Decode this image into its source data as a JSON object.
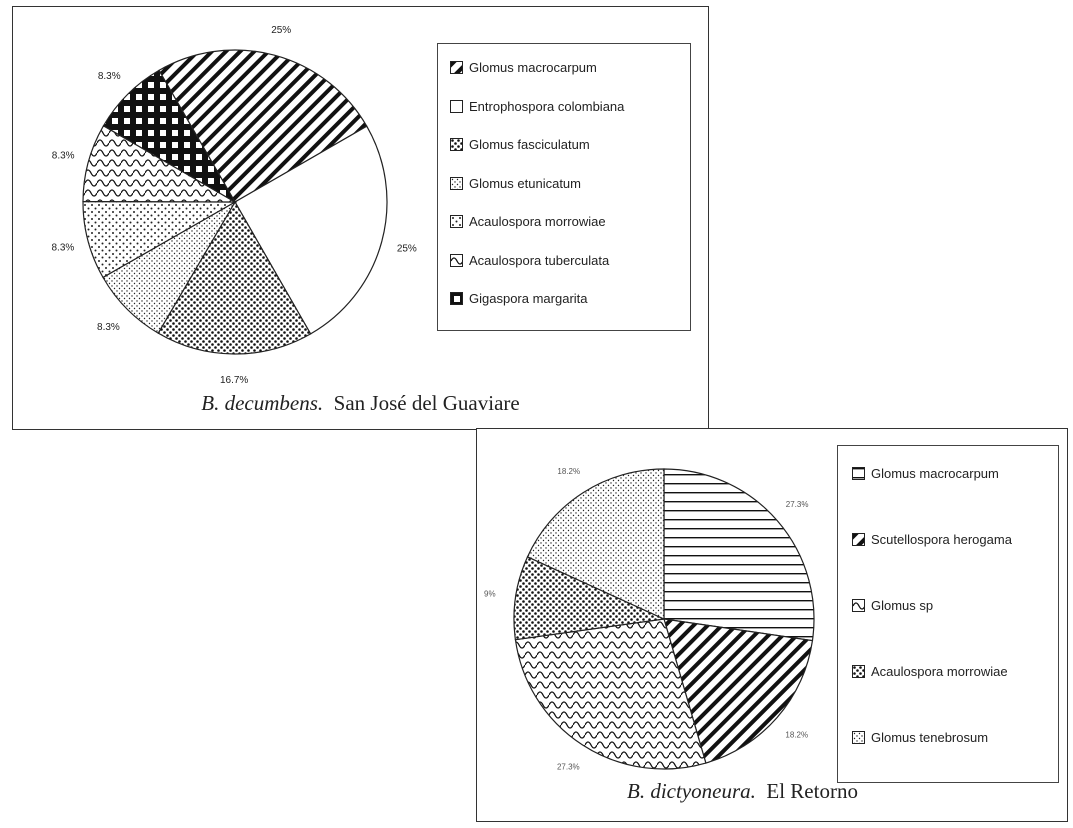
{
  "chart_data": [
    {
      "type": "pie",
      "caption_species": "B. decumbens.",
      "caption_place": "San José del Guaviare",
      "slices": [
        {
          "label": "Glomus macrocarpum",
          "value": 25,
          "pct_label": "25%",
          "pattern": "diag-stripe"
        },
        {
          "label": "Entrophospora colombiana",
          "value": 25,
          "pct_label": "25%",
          "pattern": "blank"
        },
        {
          "label": "Glomus fasciculatum",
          "value": 16.7,
          "pct_label": "16.7%",
          "pattern": "dense-dots"
        },
        {
          "label": "Glomus etunicatum",
          "value": 8.3,
          "pct_label": "8.3%",
          "pattern": "fine-dots"
        },
        {
          "label": "Acaulospora morrowiae",
          "value": 8.3,
          "pct_label": "8.3%",
          "pattern": "sparse-dots"
        },
        {
          "label": "Acaulospora tuberculata",
          "value": 8.3,
          "pct_label": "8.3%",
          "pattern": "wave"
        },
        {
          "label": "Gigaspora margarita",
          "value": 8.3,
          "pct_label": "8.3%",
          "pattern": "grid"
        }
      ]
    },
    {
      "type": "pie",
      "caption_species": "B. dictyoneura.",
      "caption_place": "El Retorno",
      "slices": [
        {
          "label": "Glomus macrocarpum",
          "value": 27.3,
          "pct_label": "27.3%",
          "pattern": "horiz-stripe"
        },
        {
          "label": "Scutellospora herogama",
          "value": 18.2,
          "pct_label": "18.2%",
          "pattern": "diag-stripe"
        },
        {
          "label": "Glomus sp",
          "value": 27.3,
          "pct_label": "27.3%",
          "pattern": "wave"
        },
        {
          "label": "Acaulospora morrowiae",
          "value": 9,
          "pct_label": "9%",
          "pattern": "dense-dots"
        },
        {
          "label": "Glomus tenebrosum",
          "value": 18.2,
          "pct_label": "18.2%",
          "pattern": "fine-dots"
        }
      ]
    }
  ]
}
